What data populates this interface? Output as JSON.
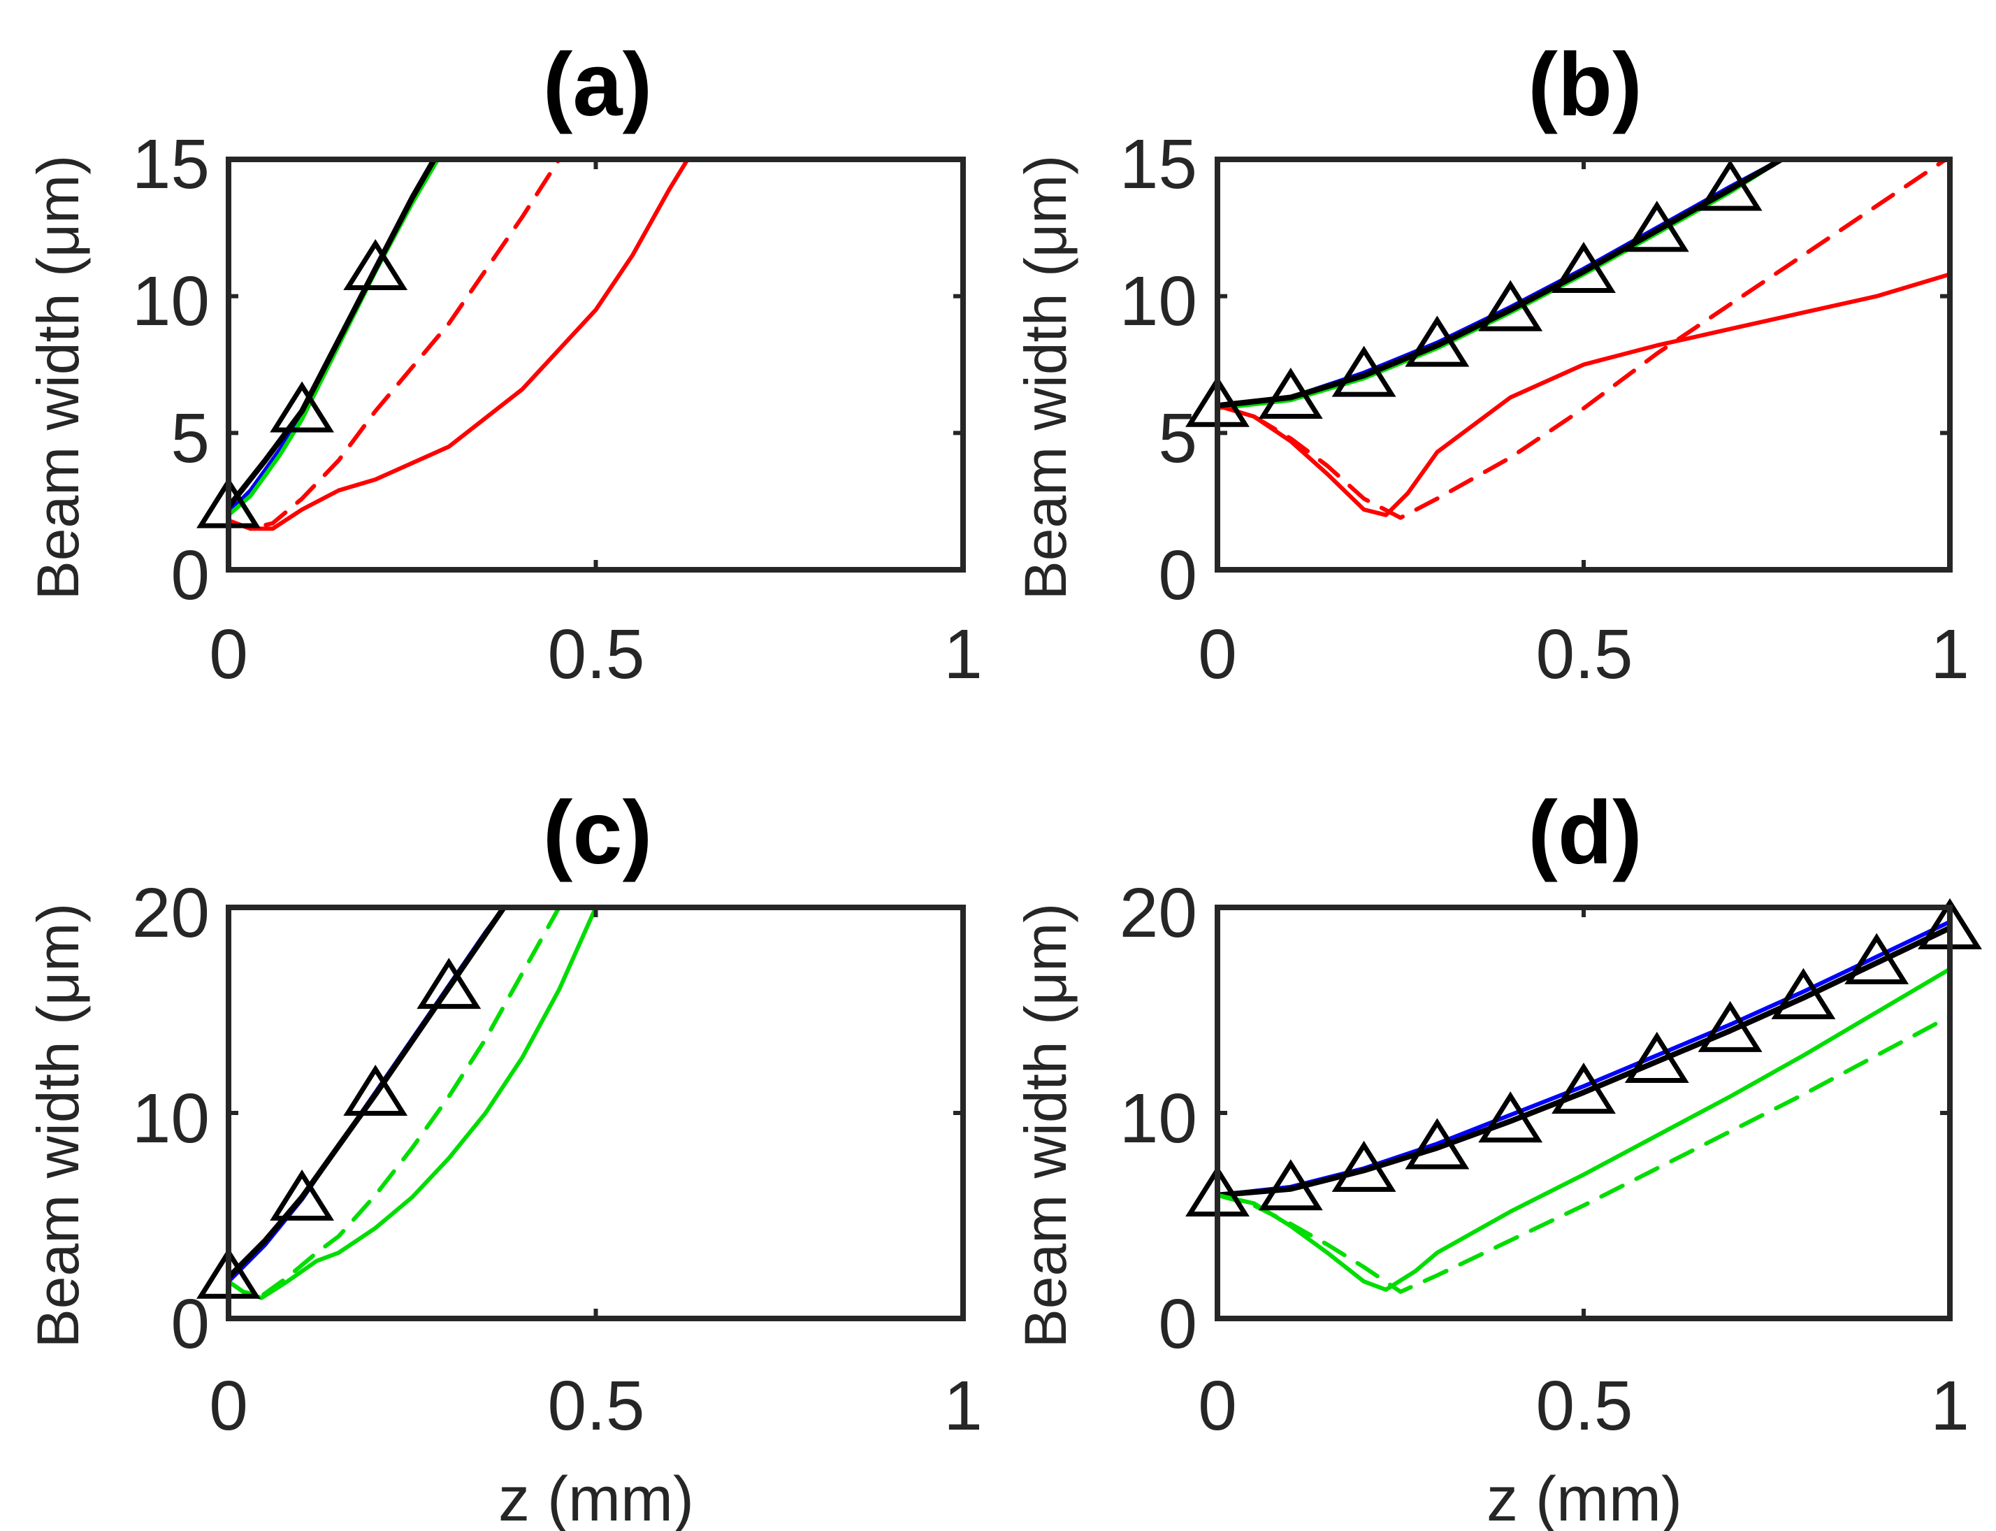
{
  "chart_data": [
    {
      "panel": "(a)",
      "type": "line",
      "title": "(a)",
      "ylabel": "Beam width (μm)",
      "xlabel": "",
      "xlim": [
        0,
        1
      ],
      "ylim": [
        0,
        15
      ],
      "xticks": [
        0,
        0.5,
        1
      ],
      "xtick_labels": [
        "0",
        "0.5",
        "1"
      ],
      "yticks": [
        0,
        5,
        10,
        15
      ],
      "ytick_labels": [
        "0",
        "5",
        "10",
        "15"
      ],
      "series": [
        {
          "name": "blue",
          "color": "#0000ff",
          "style": "solid",
          "x": [
            0,
            0.03,
            0.07,
            0.1,
            0.15,
            0.2,
            0.25,
            0.285
          ],
          "y": [
            2.1,
            2.9,
            4.4,
            5.7,
            8.3,
            11.0,
            13.5,
            15
          ]
        },
        {
          "name": "green",
          "color": "#00dd00",
          "style": "solid",
          "x": [
            0,
            0.03,
            0.07,
            0.1,
            0.15,
            0.2,
            0.25,
            0.285
          ],
          "y": [
            2.0,
            2.7,
            4.2,
            5.5,
            8.2,
            10.9,
            13.4,
            15
          ]
        },
        {
          "name": "red solid",
          "color": "#ff0000",
          "style": "solid",
          "x": [
            0,
            0.03,
            0.06,
            0.1,
            0.15,
            0.2,
            0.3,
            0.4,
            0.5,
            0.55,
            0.6,
            0.625
          ],
          "y": [
            1.8,
            1.5,
            1.5,
            2.2,
            2.9,
            3.3,
            4.5,
            6.6,
            9.5,
            11.5,
            13.9,
            15
          ]
        },
        {
          "name": "red dashed",
          "color": "#ff0000",
          "style": "dashed",
          "x": [
            0,
            0.03,
            0.06,
            0.1,
            0.15,
            0.2,
            0.3,
            0.4,
            0.45
          ],
          "y": [
            1.8,
            1.5,
            1.7,
            2.6,
            4.0,
            5.8,
            9.0,
            12.9,
            15
          ]
        },
        {
          "name": "black triangles",
          "color": "#000000",
          "style": "solid",
          "marker": "triangle",
          "x": [
            0,
            0.05,
            0.1,
            0.15,
            0.2,
            0.25,
            0.28
          ],
          "y": [
            2.3,
            4.0,
            5.8,
            8.4,
            11.0,
            13.6,
            15
          ],
          "marker_x": [
            0,
            0.1,
            0.2
          ],
          "marker_y": [
            2.3,
            5.8,
            11.0
          ]
        }
      ]
    },
    {
      "panel": "(b)",
      "type": "line",
      "title": "(b)",
      "ylabel": "Beam width (μm)",
      "xlabel": "",
      "xlim": [
        0,
        1
      ],
      "ylim": [
        0,
        15
      ],
      "xticks": [
        0,
        0.5,
        1
      ],
      "xtick_labels": [
        "0",
        "0.5",
        "1"
      ],
      "yticks": [
        0,
        5,
        10,
        15
      ],
      "ytick_labels": [
        "0",
        "5",
        "10",
        "15"
      ],
      "series": [
        {
          "name": "blue",
          "color": "#0000ff",
          "style": "solid",
          "x": [
            0,
            0.1,
            0.2,
            0.3,
            0.4,
            0.5,
            0.6,
            0.7,
            0.77
          ],
          "y": [
            6.0,
            6.3,
            7.2,
            8.3,
            9.6,
            11.0,
            12.5,
            14.0,
            15
          ]
        },
        {
          "name": "green",
          "color": "#00dd00",
          "style": "solid",
          "x": [
            0,
            0.1,
            0.2,
            0.3,
            0.4,
            0.5,
            0.6,
            0.7,
            0.77
          ],
          "y": [
            5.9,
            6.2,
            7.0,
            8.1,
            9.4,
            10.8,
            12.3,
            13.8,
            15
          ]
        },
        {
          "name": "red solid",
          "color": "#ff0000",
          "style": "solid",
          "x": [
            0,
            0.05,
            0.1,
            0.15,
            0.2,
            0.23,
            0.26,
            0.3,
            0.4,
            0.5,
            0.6,
            0.7,
            0.8,
            0.9,
            1.0
          ],
          "y": [
            6.0,
            5.6,
            4.7,
            3.5,
            2.2,
            2.0,
            2.8,
            4.3,
            6.3,
            7.5,
            8.2,
            8.8,
            9.4,
            10.0,
            10.8
          ]
        },
        {
          "name": "red dashed",
          "color": "#ff0000",
          "style": "dashed",
          "x": [
            0,
            0.05,
            0.1,
            0.15,
            0.2,
            0.25,
            0.3,
            0.4,
            0.5,
            0.6,
            0.7,
            0.8,
            0.9,
            1.0
          ],
          "y": [
            6.0,
            5.6,
            4.8,
            3.8,
            2.6,
            1.9,
            2.6,
            4.1,
            5.9,
            7.9,
            9.7,
            11.5,
            13.3,
            15.1
          ]
        },
        {
          "name": "black triangles",
          "color": "#000000",
          "style": "solid",
          "marker": "triangle",
          "x": [
            0,
            0.1,
            0.2,
            0.3,
            0.4,
            0.5,
            0.6,
            0.7,
            0.77
          ],
          "y": [
            6.0,
            6.3,
            7.1,
            8.2,
            9.5,
            10.9,
            12.4,
            13.9,
            15
          ]
        },
        {
          "name": "markers",
          "color": "#000000",
          "style": "none",
          "marker": "triangle",
          "x": [
            0,
            0.1,
            0.2,
            0.3,
            0.4,
            0.5,
            0.6,
            0.7
          ],
          "y": [
            6.0,
            6.3,
            7.1,
            8.2,
            9.5,
            10.9,
            12.4,
            13.9
          ]
        }
      ]
    },
    {
      "panel": "(c)",
      "type": "line",
      "title": "(c)",
      "ylabel": "Beam width (μm)",
      "xlabel": "z (mm)",
      "xlim": [
        0,
        1
      ],
      "ylim": [
        0,
        20
      ],
      "xticks": [
        0,
        0.5,
        1
      ],
      "xtick_labels": [
        "0",
        "0.5",
        "1"
      ],
      "yticks": [
        0,
        10,
        20
      ],
      "ytick_labels": [
        "0",
        "10",
        "20"
      ],
      "series": [
        {
          "name": "blue",
          "color": "#0000ff",
          "style": "solid",
          "x": [
            0,
            0.05,
            0.1,
            0.15,
            0.2,
            0.25,
            0.3,
            0.35,
            0.375
          ],
          "y": [
            1.8,
            3.6,
            5.8,
            8.4,
            11.0,
            13.6,
            16.2,
            18.8,
            20
          ]
        },
        {
          "name": "black triangles",
          "color": "#000000",
          "style": "solid",
          "x": [
            0,
            0.05,
            0.1,
            0.15,
            0.2,
            0.25,
            0.3,
            0.35,
            0.375
          ],
          "y": [
            2.0,
            3.8,
            5.9,
            8.4,
            10.9,
            13.5,
            16.1,
            18.7,
            20
          ]
        },
        {
          "name": "markers",
          "color": "#000000",
          "style": "none",
          "marker": "triangle",
          "x": [
            0,
            0.1,
            0.2,
            0.3
          ],
          "y": [
            2.0,
            5.8,
            10.9,
            16.1
          ]
        },
        {
          "name": "green solid",
          "color": "#00dd00",
          "style": "solid",
          "x": [
            0,
            0.02,
            0.045,
            0.08,
            0.12,
            0.15,
            0.2,
            0.25,
            0.3,
            0.35,
            0.4,
            0.45,
            0.5
          ],
          "y": [
            1.8,
            1.3,
            1.0,
            1.8,
            2.8,
            3.2,
            4.4,
            5.9,
            7.8,
            10.0,
            12.7,
            16.0,
            20
          ]
        },
        {
          "name": "green dashed",
          "color": "#00dd00",
          "style": "dashed",
          "x": [
            0,
            0.02,
            0.045,
            0.08,
            0.12,
            0.15,
            0.2,
            0.25,
            0.3,
            0.35,
            0.4,
            0.45
          ],
          "y": [
            1.8,
            1.3,
            1.1,
            2.0,
            3.2,
            4.0,
            6.0,
            8.3,
            10.8,
            13.6,
            16.8,
            20
          ]
        }
      ]
    },
    {
      "panel": "(d)",
      "type": "line",
      "title": "(d)",
      "ylabel": "Beam width (μm)",
      "xlabel": "z (mm)",
      "xlim": [
        0,
        1
      ],
      "ylim": [
        0,
        20
      ],
      "xticks": [
        0,
        0.5,
        1
      ],
      "xtick_labels": [
        "0",
        "0.5",
        "1"
      ],
      "yticks": [
        0,
        10,
        20
      ],
      "ytick_labels": [
        "0",
        "10",
        "20"
      ],
      "series": [
        {
          "name": "blue",
          "color": "#0000ff",
          "style": "solid",
          "x": [
            0,
            0.1,
            0.2,
            0.3,
            0.4,
            0.5,
            0.6,
            0.7,
            0.8,
            0.9,
            1.0
          ],
          "y": [
            6.0,
            6.4,
            7.3,
            8.5,
            9.9,
            11.3,
            12.8,
            14.3,
            15.9,
            17.6,
            19.3
          ]
        },
        {
          "name": "black triangles",
          "color": "#000000",
          "style": "solid",
          "x": [
            0,
            0.1,
            0.2,
            0.3,
            0.4,
            0.5,
            0.6,
            0.7,
            0.8,
            0.9,
            1.0
          ],
          "y": [
            6.0,
            6.3,
            7.2,
            8.3,
            9.6,
            11.0,
            12.5,
            14.0,
            15.6,
            17.3,
            19.0
          ]
        },
        {
          "name": "markers",
          "color": "#000000",
          "style": "none",
          "marker": "triangle",
          "x": [
            0,
            0.1,
            0.2,
            0.3,
            0.4,
            0.5,
            0.6,
            0.7,
            0.8,
            0.9,
            1.0
          ],
          "y": [
            6.0,
            6.3,
            7.2,
            8.3,
            9.6,
            11.0,
            12.5,
            14.0,
            15.6,
            17.3,
            19.0
          ]
        },
        {
          "name": "green solid",
          "color": "#00dd00",
          "style": "solid",
          "x": [
            0,
            0.05,
            0.1,
            0.15,
            0.2,
            0.23,
            0.27,
            0.3,
            0.4,
            0.5,
            0.6,
            0.7,
            0.8,
            0.9,
            1.0
          ],
          "y": [
            6.0,
            5.6,
            4.5,
            3.2,
            1.8,
            1.4,
            2.3,
            3.2,
            5.2,
            7.0,
            8.9,
            10.8,
            12.8,
            14.9,
            17.0
          ]
        },
        {
          "name": "green dashed",
          "color": "#00dd00",
          "style": "dashed",
          "x": [
            0,
            0.05,
            0.1,
            0.15,
            0.2,
            0.25,
            0.3,
            0.4,
            0.5,
            0.6,
            0.7,
            0.8,
            0.9,
            1.0
          ],
          "y": [
            6.0,
            5.5,
            4.6,
            3.6,
            2.5,
            1.3,
            2.1,
            3.8,
            5.5,
            7.3,
            9.1,
            10.9,
            12.8,
            14.7
          ]
        }
      ]
    }
  ]
}
